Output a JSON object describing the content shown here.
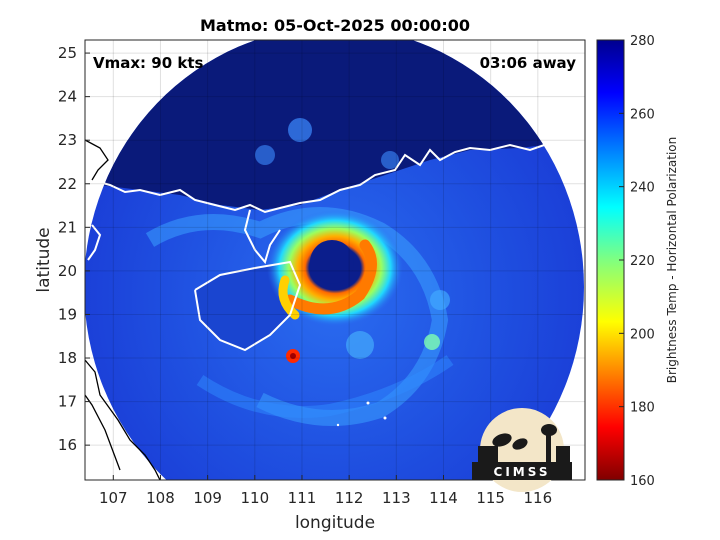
{
  "chart_data": {
    "type": "map",
    "title": "Matmo: 05-Oct-2025 00:00:00",
    "vmax_label": "Vmax: 90 kts",
    "time_away_label": "03:06 away",
    "xlabel": "longitude",
    "ylabel": "latitude",
    "xlim": [
      106.4,
      117.0
    ],
    "ylim": [
      15.2,
      25.3
    ],
    "xticks": [
      107,
      108,
      109,
      110,
      111,
      112,
      113,
      114,
      115,
      116
    ],
    "yticks": [
      16,
      17,
      18,
      19,
      20,
      21,
      22,
      23,
      24,
      25
    ],
    "grid": true,
    "colorbar": {
      "label": "Brightness Temp - Horizontal Polarization",
      "range": [
        160,
        280
      ],
      "ticks": [
        160,
        180,
        200,
        220,
        240,
        260,
        280
      ],
      "colormap": "jet"
    },
    "storm_center": {
      "lon": 111.7,
      "lat": 20.2
    },
    "swath_center": {
      "lon": 111.7,
      "lat": 19.6
    },
    "logo_text": "CIMSS",
    "colors": {
      "ocean_background": "#1a3cd6",
      "cold_land": "#0a1a7a",
      "eye": "#0b1e8c",
      "eyewall": "#ff8c00",
      "coastline_swath": "#ffffff",
      "coastline_outside": "#000000"
    }
  }
}
